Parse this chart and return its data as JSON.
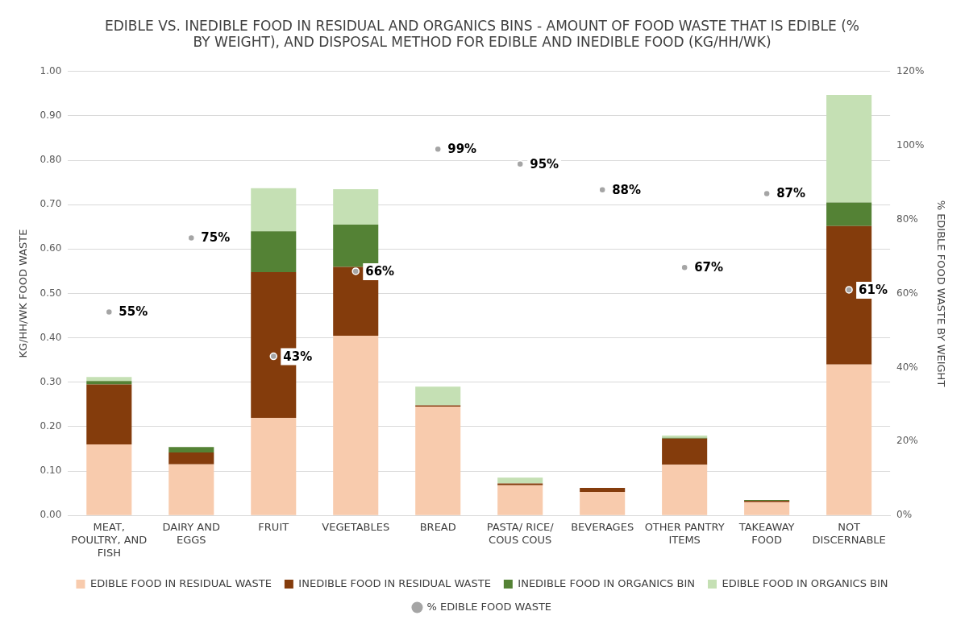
{
  "chart_data": {
    "type": "bar",
    "title": "EDIBLE VS. INEDIBLE FOOD IN RESIDUAL AND ORGANICS BINS - AMOUNT OF FOOD WASTE THAT IS EDIBLE (% BY WEIGHT), AND DISPOSAL METHOD FOR EDIBLE AND INEDIBLE FOOD (KG/HH/WK)",
    "ylabel": "KG/HH/WK FOOD WASTE",
    "y2label": "% EDIBLE FOOD WASTE BY WEIGHT",
    "categories": [
      "MEAT, POULTRY, AND FISH",
      "DAIRY AND EGGS",
      "FRUIT",
      "VEGETABLES",
      "BREAD",
      "PASTA/ RICE/ COUS COUS",
      "BEVERAGES",
      "OTHER PANTRY ITEMS",
      "TAKEAWAY FOOD",
      "NOT DISCERNABLE"
    ],
    "stacked": true,
    "series": [
      {
        "name": "EDIBLE FOOD IN RESIDUAL WASTE",
        "color": "#f8cbad",
        "values": [
          0.16,
          0.115,
          0.22,
          0.405,
          0.245,
          0.068,
          0.053,
          0.114,
          0.03,
          0.34
        ]
      },
      {
        "name": "INEDIBLE FOOD IN RESIDUAL WASTE",
        "color": "#843c0c",
        "values": [
          0.135,
          0.027,
          0.328,
          0.155,
          0.003,
          0.004,
          0.009,
          0.059,
          0.003,
          0.312
        ]
      },
      {
        "name": "INEDIBLE FOOD IN ORGANICS BIN",
        "color": "#548235",
        "values": [
          0.008,
          0.012,
          0.092,
          0.095,
          0,
          null,
          0,
          0.002,
          0.002,
          0.053
        ]
      },
      {
        "name": "EDIBLE FOOD IN ORGANICS BIN",
        "color": "#c5e0b4",
        "values": [
          0.009,
          0,
          0.097,
          0.08,
          0.042,
          0.013,
          0,
          0.005,
          0,
          0.242
        ]
      },
      {
        "name": "% EDIBLE FOOD WASTE",
        "type": "scatter",
        "axis": "y2",
        "color": "#a5a5a5",
        "x": [
          "MEAT, POULTRY, AND FISH",
          "DAIRY AND EGGS",
          "FRUIT",
          "VEGETABLES",
          "BREAD",
          "PASTA/ RICE/ COUS COUS",
          "BEVERAGES",
          "OTHER PANTRY ITEMS",
          "TAKEAWAY FOOD",
          "NOT DISCERNABLE"
        ],
        "values": [
          55,
          75,
          43,
          66,
          99,
          95,
          88,
          67,
          87,
          61
        ],
        "value_labels": [
          "55%",
          "75%",
          "43%",
          "66%",
          "99%",
          "95%",
          "88%",
          "67%",
          "87%",
          "61%"
        ]
      }
    ],
    "ylim": [
      0,
      1
    ],
    "yticks": [
      {
        "value": 0,
        "label": "0.00"
      },
      {
        "value": 0.1,
        "label": "0.10"
      },
      {
        "value": 0.2,
        "label": "0.20"
      },
      {
        "value": 0.3,
        "label": "0.30"
      },
      {
        "value": 0.4,
        "label": "0.40"
      },
      {
        "value": 0.5,
        "label": "0.50"
      },
      {
        "value": 0.6,
        "label": "0.60"
      },
      {
        "value": 0.7,
        "label": "0.70"
      },
      {
        "value": 0.8,
        "label": "0.80"
      },
      {
        "value": 0.9,
        "label": "0.90"
      },
      {
        "value": 1,
        "label": "1.00"
      }
    ],
    "y2lim": [
      0,
      120
    ],
    "y2ticks": [
      {
        "value": 0,
        "label": "0%"
      },
      {
        "value": 20,
        "label": "20%"
      },
      {
        "value": 40,
        "label": "40%"
      },
      {
        "value": 60,
        "label": "60%"
      },
      {
        "value": 80,
        "label": "80%"
      },
      {
        "value": 100,
        "label": "100%"
      },
      {
        "value": 120,
        "label": "120%"
      }
    ],
    "grid": "y",
    "legend": "bottom",
    "marker": "circle"
  }
}
